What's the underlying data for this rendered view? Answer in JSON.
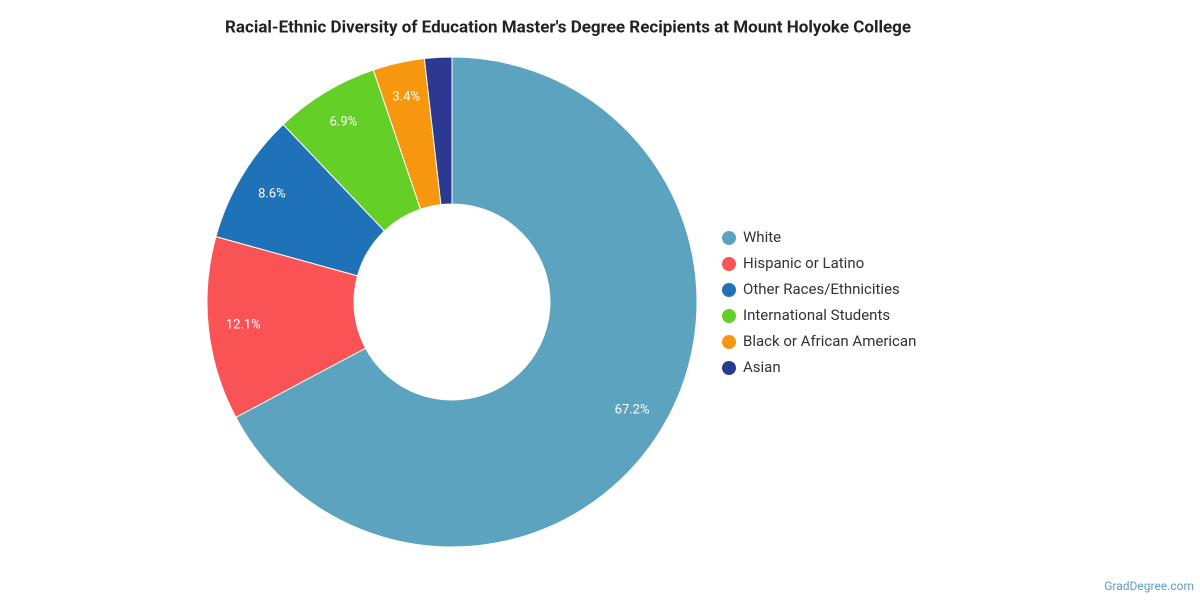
{
  "chart_data": {
    "type": "donut",
    "title": "Racial-Ethnic Diversity of Education Master's Degree Recipients at Mount Holyoke College",
    "categories": [
      "White",
      "Hispanic or Latino",
      "Other Races/Ethnicities",
      "International Students",
      "Black or African American",
      "Asian"
    ],
    "values": [
      67.2,
      12.1,
      8.6,
      6.9,
      3.4,
      1.8
    ],
    "value_labels": [
      "67.2%",
      "12.1%",
      "8.6%",
      "6.9%",
      "3.4%",
      null
    ],
    "colors": [
      "#5ba3be",
      "#f95356",
      "#1f72b8",
      "#63cf27",
      "#f7970f",
      "#2b3990"
    ],
    "legend": "right",
    "source": "GradDegree.com"
  }
}
